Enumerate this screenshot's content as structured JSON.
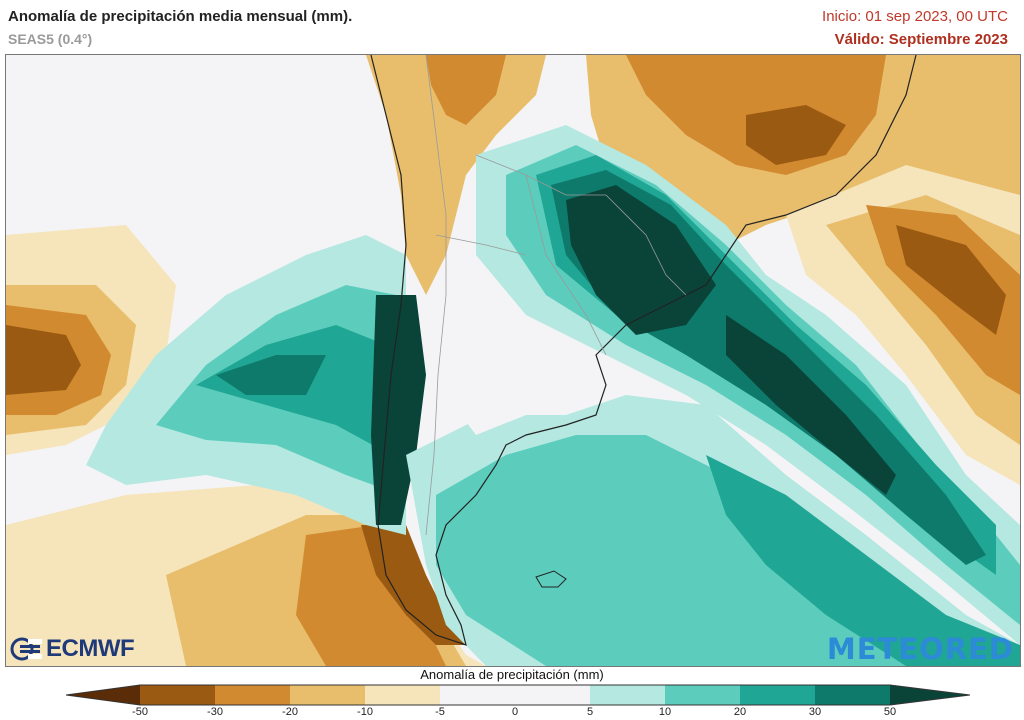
{
  "header": {
    "title": "Anomalía de precipitación media mensual (mm).",
    "subtitle": "SEAS5 (0.4°)",
    "init": "Inicio: 01 sep 2023, 00 UTC",
    "valid": "Válido: Septiembre 2023"
  },
  "logos": {
    "left": "ECMWF",
    "right": "METEORED"
  },
  "legend": {
    "title": "Anomalía de precipitación (mm)",
    "ticks": [
      "-50",
      "-30",
      "-20",
      "-10",
      "-5",
      "0",
      "5",
      "10",
      "20",
      "30",
      "50"
    ],
    "colors": {
      "lt-50": "#5a2d08",
      "-50..-30": "#9a5a12",
      "-30..-20": "#d28a30",
      "-20..-10": "#e8be6c",
      "-10..-5": "#f6e4bb",
      "-5..5": "#f4f4f6",
      "5..10": "#b4e8e0",
      "10..20": "#5ccdbd",
      "20..30": "#20a694",
      "30..50": "#0e7a6c",
      "gt50": "#0a4438"
    }
  }
}
